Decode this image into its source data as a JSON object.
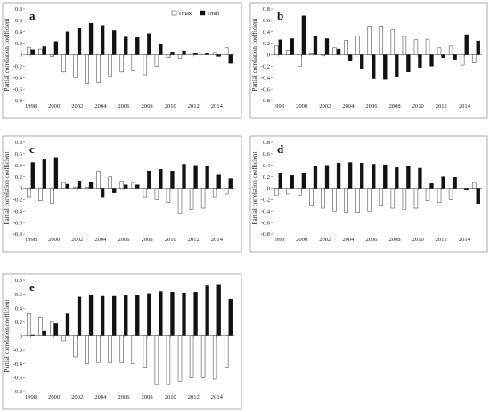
{
  "legend": {
    "tmax": "Tmax",
    "tmin": "Tmin"
  },
  "colors": {
    "tmax_fill": "#ffffff",
    "tmax_stroke": "#555555",
    "tmin_fill": "#111111",
    "frame": "#9a9a9a"
  },
  "chart_data": [
    {
      "type": "bar",
      "panel": "a",
      "ylabel": "Partial correlation coefficient",
      "ylim": [
        -0.8,
        0.8
      ],
      "yticks": [
        "-0.8",
        "-0.6",
        "-0.4",
        "-0.2",
        "0",
        "0.2",
        "0.4",
        "0.6",
        "0.8"
      ],
      "xtick_labels": [
        "1998",
        "2000",
        "2002",
        "2004",
        "2006",
        "2008",
        "2010",
        "2012",
        "2014"
      ],
      "legend": true,
      "categories": [
        "1998",
        "1999",
        "2000",
        "2001",
        "2002",
        "2003",
        "2004",
        "2005",
        "2006",
        "2007",
        "2008",
        "2009",
        "2010",
        "2011",
        "2012",
        "2013",
        "2014",
        "2015"
      ],
      "series": [
        {
          "name": "Tmax",
          "values": [
            0.13,
            0.1,
            -0.03,
            -0.3,
            -0.4,
            -0.5,
            -0.48,
            -0.37,
            -0.3,
            -0.28,
            -0.35,
            -0.2,
            -0.05,
            -0.06,
            0.03,
            0.03,
            0.04,
            0.12
          ]
        },
        {
          "name": "Tmin",
          "values": [
            0.09,
            0.14,
            0.23,
            0.4,
            0.47,
            0.55,
            0.51,
            0.42,
            0.31,
            0.3,
            0.37,
            0.18,
            0.05,
            0.07,
            0.02,
            0.02,
            -0.03,
            -0.15
          ]
        }
      ]
    },
    {
      "type": "bar",
      "panel": "b",
      "ylabel": "Partial correlation coefficient",
      "ylim": [
        -0.8,
        0.8
      ],
      "yticks": [
        "-0.8",
        "-0.6",
        "-0.4",
        "-0.2",
        "0",
        "0.2",
        "0.4",
        "0.6",
        "0.8"
      ],
      "xtick_labels": [
        "1998",
        "2000",
        "2002",
        "2004",
        "2006",
        "2008",
        "2010",
        "2012",
        "2014"
      ],
      "legend": false,
      "categories": [
        "1998",
        "1999",
        "2000",
        "2001",
        "2002",
        "2003",
        "2004",
        "2005",
        "2006",
        "2007",
        "2008",
        "2009",
        "2010",
        "2011",
        "2012",
        "2013",
        "2014",
        "2015"
      ],
      "series": [
        {
          "name": "Tmax",
          "values": [
            0.15,
            0.08,
            -0.2,
            0.02,
            0.0,
            0.12,
            0.25,
            0.33,
            0.5,
            0.5,
            0.43,
            0.32,
            0.26,
            0.27,
            0.12,
            0.15,
            -0.18,
            -0.14
          ]
        },
        {
          "name": "Tmin",
          "values": [
            0.26,
            0.28,
            0.68,
            0.33,
            0.28,
            0.1,
            -0.1,
            -0.25,
            -0.42,
            -0.43,
            -0.38,
            -0.3,
            -0.22,
            -0.2,
            -0.05,
            -0.08,
            0.35,
            0.24
          ]
        }
      ]
    },
    {
      "type": "bar",
      "panel": "c",
      "ylabel": "Partial correlation coefficient",
      "ylim": [
        -0.8,
        0.8
      ],
      "yticks": [
        "-0.8",
        "-0.6",
        "-0.4",
        "-0.2",
        "0",
        "0.2",
        "0.4",
        "0.6",
        "0.8"
      ],
      "xtick_labels": [
        "1998",
        "2000",
        "2002",
        "2004",
        "2006",
        "2008",
        "2010",
        "2012",
        "2014"
      ],
      "legend": false,
      "categories": [
        "1998",
        "1999",
        "2000",
        "2001",
        "2002",
        "2003",
        "2004",
        "2005",
        "2006",
        "2007",
        "2008",
        "2009",
        "2010",
        "2011",
        "2012",
        "2013",
        "2014",
        "2015"
      ],
      "series": [
        {
          "name": "Tmax",
          "values": [
            -0.15,
            -0.22,
            -0.27,
            0.1,
            0.02,
            0.02,
            0.3,
            0.2,
            0.12,
            0.1,
            -0.15,
            -0.2,
            -0.25,
            -0.43,
            -0.37,
            -0.35,
            -0.15,
            -0.1
          ]
        },
        {
          "name": "Tmin",
          "values": [
            0.45,
            0.5,
            0.54,
            0.07,
            0.13,
            0.1,
            -0.15,
            -0.08,
            0.06,
            0.06,
            0.3,
            0.33,
            0.3,
            0.42,
            0.4,
            0.39,
            0.23,
            0.17
          ]
        }
      ]
    },
    {
      "type": "bar",
      "panel": "d",
      "ylabel": "Partial correlation coefficient",
      "ylim": [
        -0.8,
        0.8
      ],
      "yticks": [
        "-0.8",
        "-0.6",
        "-0.4",
        "-0.2",
        "0",
        "0.2",
        "0.4",
        "0.6",
        "0.8"
      ],
      "xtick_labels": [
        "1998",
        "2000",
        "2002",
        "2004",
        "2006",
        "2008",
        "2010",
        "2012",
        "2014"
      ],
      "legend": false,
      "categories": [
        "1998",
        "1999",
        "2000",
        "2001",
        "2002",
        "2003",
        "2004",
        "2005",
        "2006",
        "2007",
        "2008",
        "2009",
        "2010",
        "2011",
        "2012",
        "2013",
        "2014",
        "2015"
      ],
      "series": [
        {
          "name": "Tmax",
          "values": [
            -0.12,
            -0.1,
            -0.12,
            -0.3,
            -0.35,
            -0.4,
            -0.42,
            -0.42,
            -0.4,
            -0.3,
            -0.35,
            -0.37,
            -0.35,
            -0.22,
            -0.25,
            -0.2,
            -0.03,
            0.1
          ]
        },
        {
          "name": "Tmin",
          "values": [
            0.27,
            0.22,
            0.27,
            0.38,
            0.4,
            0.44,
            0.45,
            0.44,
            0.42,
            0.41,
            0.36,
            0.38,
            0.35,
            0.08,
            0.2,
            0.19,
            -0.02,
            -0.27
          ]
        }
      ]
    },
    {
      "type": "bar",
      "panel": "e",
      "ylabel": "Partial correlation coefficient",
      "ylim": [
        -0.8,
        0.8
      ],
      "yticks": [
        "-0.8",
        "-0.6",
        "-0.4",
        "-0.2",
        "0",
        "0.2",
        "0.4",
        "0.6",
        "0.8"
      ],
      "xtick_labels": [
        "1998",
        "2000",
        "2002",
        "2004",
        "2006",
        "2008",
        "2010",
        "2012",
        "2014"
      ],
      "legend": false,
      "categories": [
        "1998",
        "1999",
        "2000",
        "2001",
        "2002",
        "2003",
        "2004",
        "2005",
        "2006",
        "2007",
        "2008",
        "2009",
        "2010",
        "2011",
        "2012",
        "2013",
        "2014",
        "2015"
      ],
      "series": [
        {
          "name": "Tmax",
          "values": [
            0.32,
            0.27,
            0.2,
            -0.07,
            -0.3,
            -0.4,
            -0.38,
            -0.38,
            -0.38,
            -0.4,
            -0.45,
            -0.7,
            -0.7,
            -0.65,
            -0.6,
            -0.6,
            -0.62,
            -0.45
          ]
        },
        {
          "name": "Tmin",
          "values": [
            0.02,
            0.07,
            0.18,
            0.32,
            0.56,
            0.58,
            0.57,
            0.57,
            0.58,
            0.58,
            0.61,
            0.64,
            0.63,
            0.62,
            0.63,
            0.73,
            0.74,
            0.53
          ]
        }
      ]
    }
  ]
}
